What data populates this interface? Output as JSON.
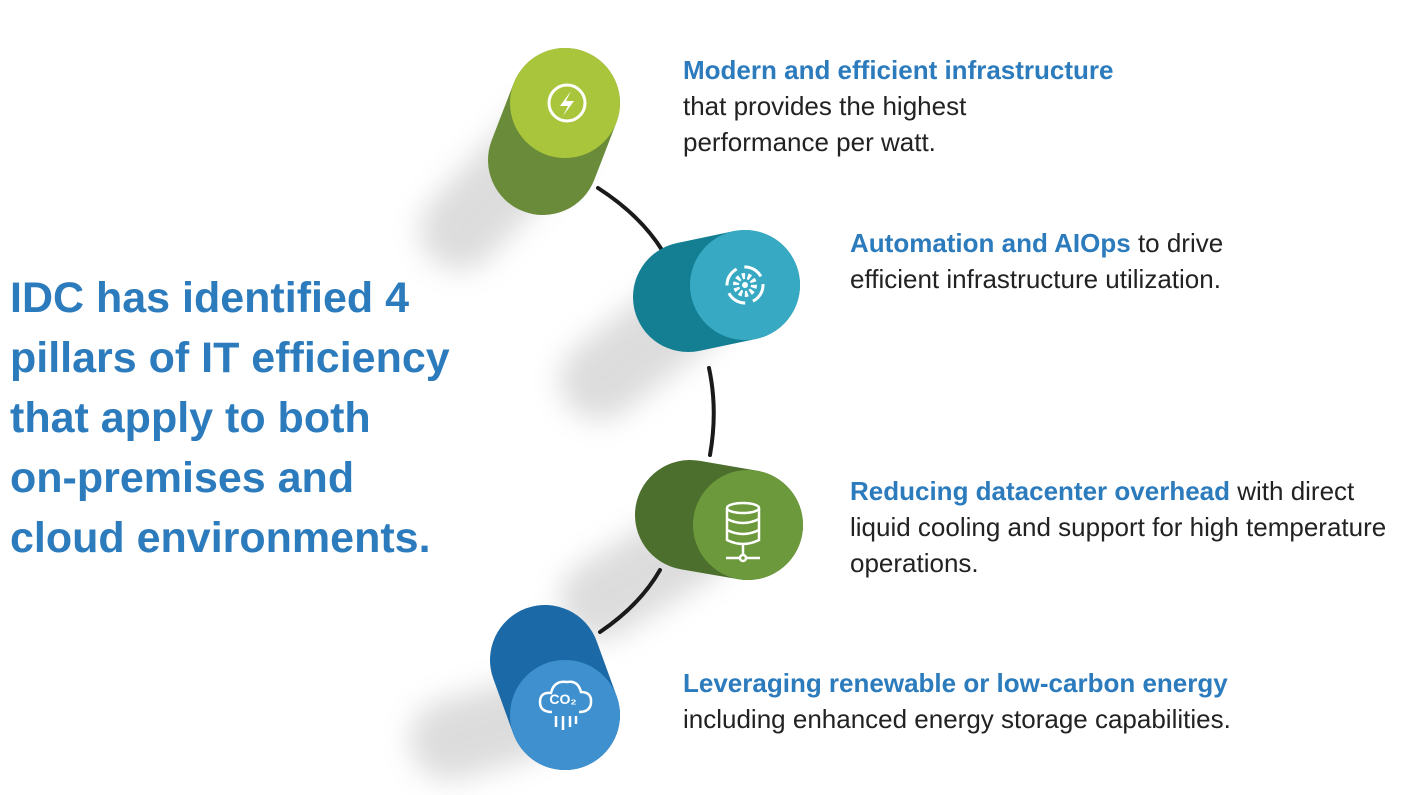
{
  "headline": {
    "lines": [
      "IDC has identified 4",
      "pillars of IT efficiency",
      "that apply to both",
      "on-premises and",
      "cloud environments."
    ]
  },
  "pillars": [
    {
      "highlight": "Modern and efficient infrastructure",
      "text": "that provides the highest performance per watt."
    },
    {
      "highlight": "Automation and AIOps",
      "text": "to drive efficient infrastructure utilization."
    },
    {
      "highlight": "Reducing datacenter overhead",
      "text": "with direct liquid cooling and support for high temperature operations."
    },
    {
      "highlight": "Leveraging renewable or low-carbon energy",
      "text": "including enhanced energy storage capabilities."
    }
  ]
}
